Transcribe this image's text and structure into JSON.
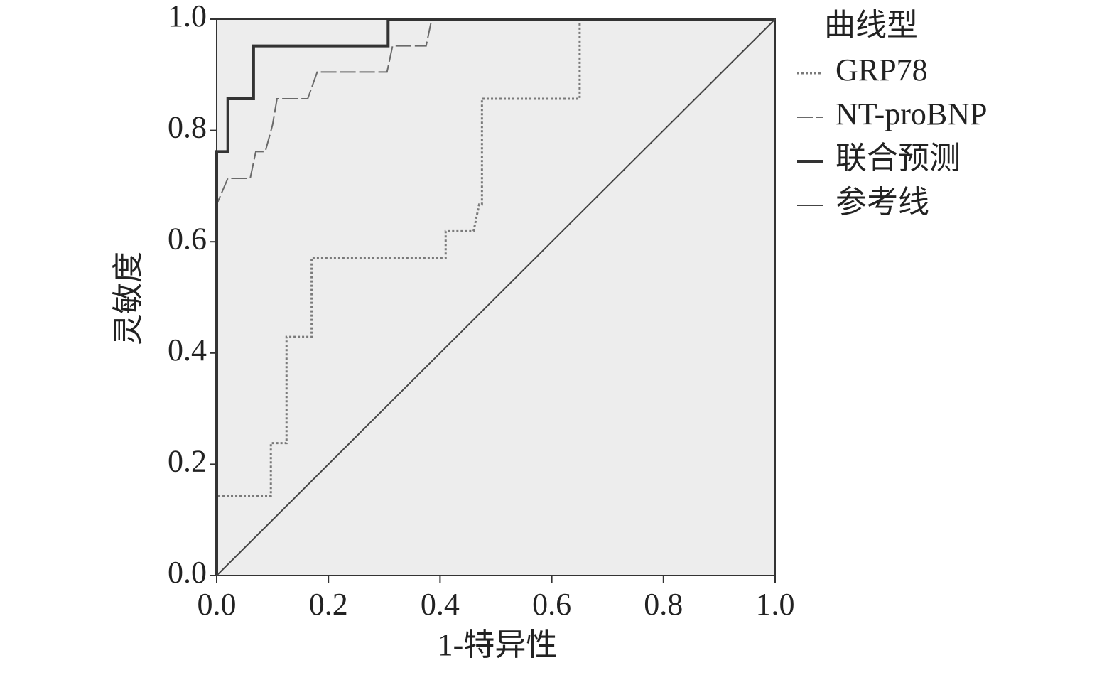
{
  "chart_data": {
    "type": "line",
    "xlabel": "1-特异性",
    "ylabel": "灵敏度",
    "legend_title": "曲线型",
    "xlim": [
      0,
      1
    ],
    "ylim": [
      0,
      1
    ],
    "xticks": [
      {
        "value": 0,
        "label": "0.0"
      },
      {
        "value": 0.2,
        "label": "0.2"
      },
      {
        "value": 0.4,
        "label": "0.4"
      },
      {
        "value": 0.6,
        "label": "0.6"
      },
      {
        "value": 0.8,
        "label": "0.8"
      },
      {
        "value": 1,
        "label": "1.0"
      }
    ],
    "yticks": [
      {
        "value": 0,
        "label": "0.0"
      },
      {
        "value": 0.2,
        "label": "0.2"
      },
      {
        "value": 0.4,
        "label": "0.4"
      },
      {
        "value": 0.6,
        "label": "0.6"
      },
      {
        "value": 0.8,
        "label": "0.8"
      },
      {
        "value": 1,
        "label": "1.0"
      }
    ],
    "background": "#ededed",
    "legend": "right",
    "series": [
      {
        "name": "GRP78",
        "color": "#7a7a7a",
        "dash": "3,3",
        "width": 3,
        "x": [
          0,
          0,
          0.097,
          0.097,
          0.125,
          0.125,
          0.17,
          0.17,
          0.41,
          0.41,
          0.46,
          0.47,
          0.475,
          0.475,
          0.65,
          0.65,
          1
        ],
        "values": [
          0,
          0.143,
          0.143,
          0.238,
          0.238,
          0.429,
          0.429,
          0.571,
          0.571,
          0.619,
          0.619,
          0.667,
          0.667,
          0.857,
          0.857,
          1,
          1
        ]
      },
      {
        "name": "NT-proBNP",
        "color": "#6a6a6a",
        "dash": "22,5",
        "width": 2,
        "x": [
          0,
          0,
          0.02,
          0.06,
          0.07,
          0.087,
          0.1,
          0.108,
          0.163,
          0.18,
          0.305,
          0.315,
          0.375,
          0.385,
          1
        ],
        "values": [
          0,
          0.667,
          0.714,
          0.714,
          0.762,
          0.762,
          0.81,
          0.857,
          0.857,
          0.905,
          0.905,
          0.952,
          0.952,
          1,
          1
        ]
      },
      {
        "name": "联合预测",
        "color": "#333333",
        "dash": "none",
        "width": 4,
        "x": [
          0,
          0,
          0.02,
          0.02,
          0.066,
          0.066,
          0.307,
          0.307,
          1
        ],
        "values": [
          0,
          0.762,
          0.762,
          0.857,
          0.857,
          0.952,
          0.952,
          1,
          1
        ]
      },
      {
        "name": "参考线",
        "color": "#444444",
        "dash": "none",
        "width": 2,
        "x": [
          0,
          1
        ],
        "values": [
          0,
          1
        ]
      }
    ]
  }
}
